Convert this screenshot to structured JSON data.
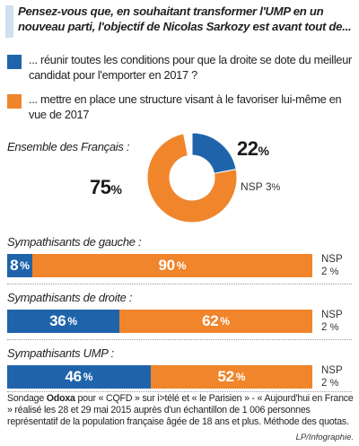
{
  "question": "Pensez-vous que, en souhaitant transformer l'UMP en un nouveau parti, l'objectif de Nicolas Sarkozy est avant tout de...",
  "legend": [
    {
      "label": "... réunir toutes les conditions pour que la droite se dote du meilleur candidat pour l'emporter en 2017 ?",
      "color": "#1f64ab"
    },
    {
      "label": "... mettre en place une structure visant à le favoriser lui-même en vue de 2017",
      "color": "#f0852c"
    }
  ],
  "colors": {
    "blue": "#1f64ab",
    "orange": "#f0852c",
    "nsp": "#ffffff"
  },
  "chart_data": [
    {
      "type": "pie",
      "title": "Ensemble des Français :",
      "slices": [
        {
          "name": "blue",
          "value": 22,
          "label": "22",
          "unit": "%"
        },
        {
          "name": "orange",
          "value": 75,
          "label": "75",
          "unit": "%"
        },
        {
          "name": "NSP",
          "value": 3,
          "label": "3",
          "unit": "%"
        }
      ],
      "nsp_label": "NSP"
    },
    {
      "type": "bar",
      "title": "Sympathisants de gauche :",
      "series": [
        {
          "color": "blue",
          "value": 8,
          "label": "8",
          "unit": "%"
        },
        {
          "color": "orange",
          "value": 90,
          "label": "90",
          "unit": "%"
        }
      ],
      "nsp": {
        "label": "NSP",
        "value": 2,
        "unit": "%"
      }
    },
    {
      "type": "bar",
      "title": "Sympathisants de droite :",
      "series": [
        {
          "color": "blue",
          "value": 36,
          "label": "36",
          "unit": "%"
        },
        {
          "color": "orange",
          "value": 62,
          "label": "62",
          "unit": "%"
        }
      ],
      "nsp": {
        "label": "NSP",
        "value": 2,
        "unit": "%"
      }
    },
    {
      "type": "bar",
      "title": "Sympathisants UMP :",
      "series": [
        {
          "color": "blue",
          "value": 46,
          "label": "46",
          "unit": "%"
        },
        {
          "color": "orange",
          "value": 52,
          "label": "52",
          "unit": "%"
        }
      ],
      "nsp": {
        "label": "NSP",
        "value": 2,
        "unit": "%"
      }
    }
  ],
  "footer": {
    "prefix": "Sondage ",
    "brand": "Odoxa",
    "text": " pour « CQFD » sur i>télé et « le Parisien » - « Aujourd'hui en France » réalisé les 28 et 29 mai 2015 auprès d'un échantillon de 1 006 personnes représentatif de la population française âgée de 18 ans et plus. Méthode des quotas."
  },
  "credit": "LP/Infographie."
}
